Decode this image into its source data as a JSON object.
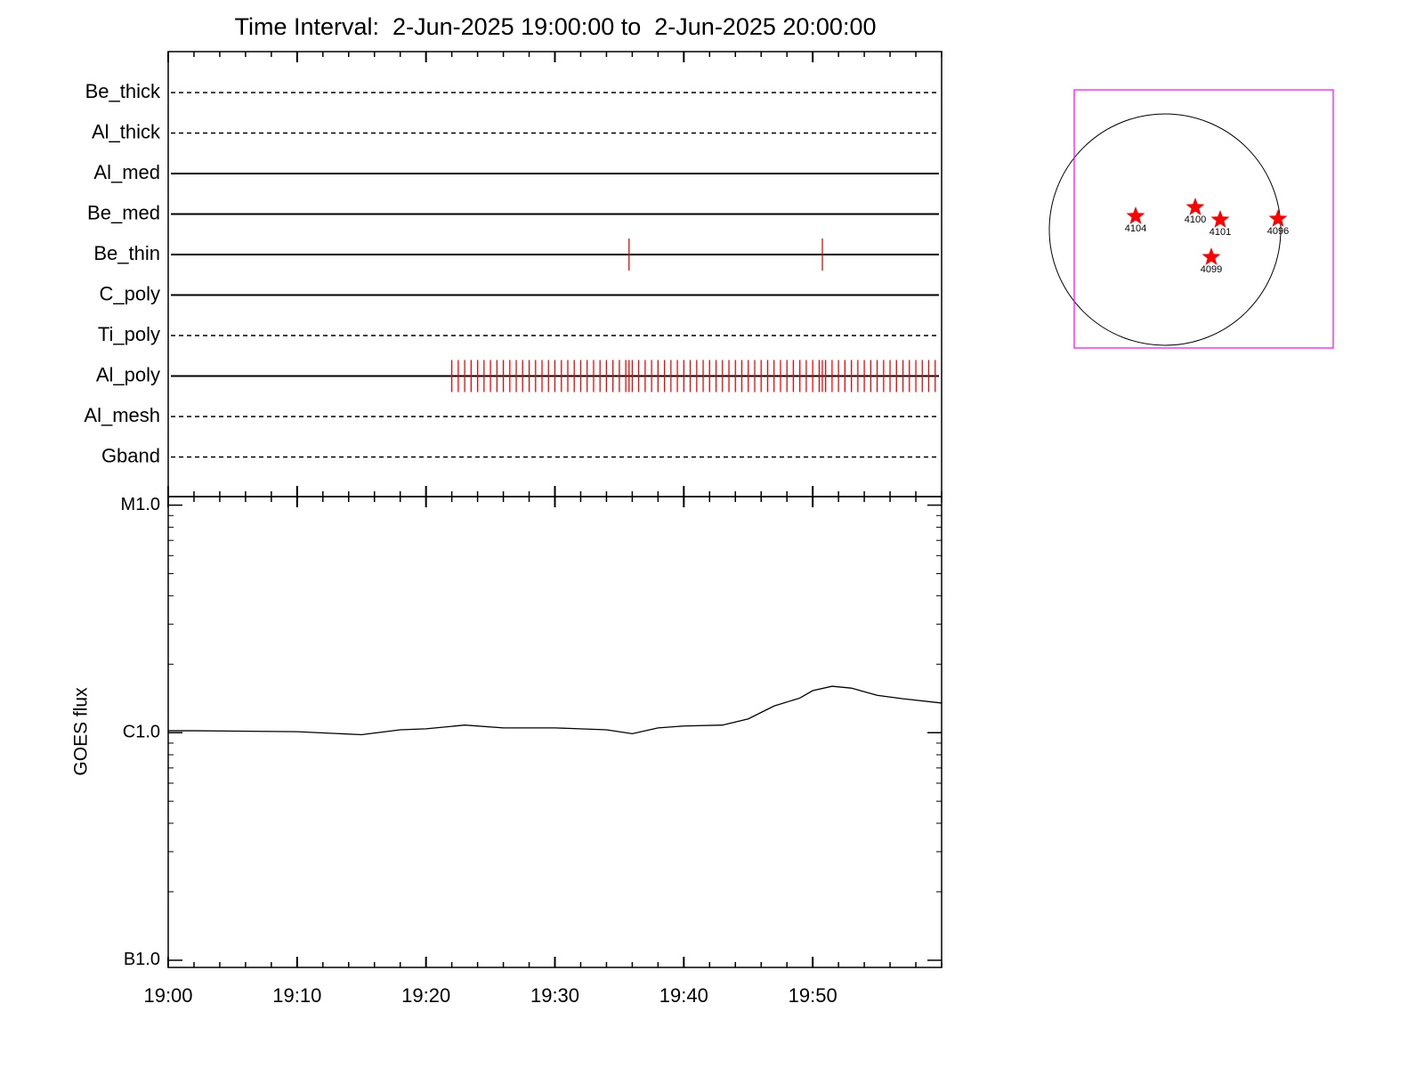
{
  "chart_data": [
    {
      "type": "timeline",
      "title": "Time Interval:  2-Jun-2025 19:00:00 to  2-Jun-2025 20:00:00",
      "categories": [
        "Be_thick",
        "Al_thick",
        "Al_med",
        "Be_med",
        "Be_thin",
        "C_poly",
        "Ti_poly",
        "Al_poly",
        "Al_mesh",
        "Gband"
      ],
      "line_styles": [
        "dashed",
        "dashed",
        "solid",
        "solid",
        "solid",
        "solid",
        "dashed",
        "solid",
        "dashed",
        "dashed"
      ],
      "events": [
        [],
        [],
        [],
        [],
        [
          35.75,
          50.75
        ],
        [],
        [],
        [
          22,
          22.5,
          23,
          23.5,
          24,
          24.5,
          25,
          25.5,
          26,
          26.5,
          27,
          27.5,
          28,
          28.5,
          29,
          29.5,
          30,
          30.5,
          31,
          31.5,
          32,
          32.5,
          33,
          33.5,
          34,
          34.5,
          35,
          35.5,
          35.75,
          36,
          36.5,
          37,
          37.5,
          38,
          38.5,
          39,
          39.5,
          40,
          40.5,
          41,
          41.5,
          42,
          42.5,
          43,
          43.5,
          44,
          44.5,
          45,
          45.5,
          46,
          46.5,
          47,
          47.5,
          48,
          48.5,
          49,
          49.5,
          50,
          50.5,
          50.75,
          51,
          51.5,
          52,
          52.5,
          53,
          53.5,
          54,
          54.5,
          55,
          55.5,
          56,
          56.5,
          57,
          57.5,
          58,
          58.5,
          59,
          59.5
        ],
        [],
        []
      ],
      "event_color": "#ff0000",
      "xlim": [
        0,
        60
      ],
      "xticks": [
        0,
        10,
        20,
        30,
        40,
        50
      ]
    },
    {
      "type": "line",
      "ylabel": "GOES flux",
      "log_scale": true,
      "color": "#000000",
      "x": [
        0,
        2,
        10,
        15,
        18,
        20,
        23,
        26,
        30,
        34,
        36,
        38,
        40,
        43,
        45,
        47,
        49,
        50,
        51.5,
        53,
        55,
        57,
        60
      ],
      "values": [
        1.02e-06,
        1.02e-06,
        1.01e-06,
        9.8e-07,
        1.03e-06,
        1.04e-06,
        1.08e-06,
        1.05e-06,
        1.05e-06,
        1.03e-06,
        9.9e-07,
        1.05e-06,
        1.07e-06,
        1.08e-06,
        1.15e-06,
        1.31e-06,
        1.42e-06,
        1.53e-06,
        1.6e-06,
        1.57e-06,
        1.46e-06,
        1.41e-06,
        1.35e-06
      ],
      "xlim": [
        0,
        60
      ],
      "xticks": [
        {
          "value": 0,
          "label": "19:00"
        },
        {
          "value": 10,
          "label": "19:10"
        },
        {
          "value": 20,
          "label": "19:20"
        },
        {
          "value": 30,
          "label": "19:30"
        },
        {
          "value": 40,
          "label": "19:40"
        },
        {
          "value": 50,
          "label": "19:50"
        }
      ],
      "ylim": [
        9.3e-08,
        1.09e-05
      ],
      "yticks": [
        {
          "value": 1e-07,
          "label": "B1.0"
        },
        {
          "value": 1e-06,
          "label": "C1.0"
        },
        {
          "value": 1e-05,
          "label": "M1.0"
        }
      ]
    },
    {
      "type": "map",
      "regions": [
        "4104",
        "4100",
        "4101",
        "4096",
        "4099"
      ],
      "color": "#ff0000",
      "box_color": "#ff00ff"
    }
  ]
}
